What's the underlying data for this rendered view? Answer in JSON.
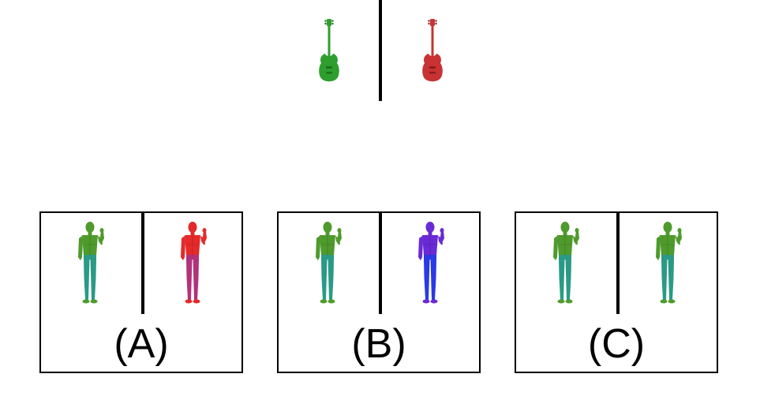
{
  "prompt": {
    "items": [
      {
        "icon": "bass-guitar-icon",
        "color": "#2e9e2e",
        "dark": "#1d6e1d"
      },
      {
        "icon": "bass-guitar-icon",
        "color": "#c83232",
        "dark": "#8a1e1e"
      }
    ]
  },
  "options": [
    {
      "label": "(A)",
      "figures": [
        {
          "icon": "person-figure-icon",
          "top": "#4f9a2c",
          "bottom": "#2a9a86"
        },
        {
          "icon": "person-figure-icon",
          "top": "#e42a2a",
          "bottom": "#b2327a"
        }
      ]
    },
    {
      "label": "(B)",
      "figures": [
        {
          "icon": "person-figure-icon",
          "top": "#4f9a2c",
          "bottom": "#2a9a86"
        },
        {
          "icon": "person-figure-icon",
          "top": "#6a2ad6",
          "bottom": "#2a3ae4"
        }
      ]
    },
    {
      "label": "(C)",
      "figures": [
        {
          "icon": "person-figure-icon",
          "top": "#4f9a2c",
          "bottom": "#2a9a86"
        },
        {
          "icon": "person-figure-icon",
          "top": "#4f9a2c",
          "bottom": "#2a9a86"
        }
      ]
    }
  ]
}
